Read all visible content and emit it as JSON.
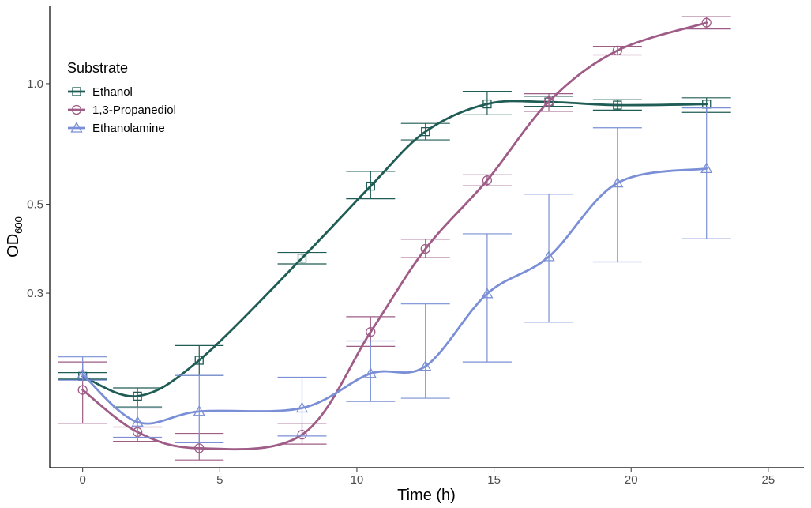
{
  "chart_data": {
    "type": "line",
    "title": "",
    "xlabel": "Time (h)",
    "ylabel_main": "OD",
    "ylabel_sub": "600",
    "x_scale": "linear",
    "y_scale": "log",
    "xlim": [
      -1.2,
      26.3
    ],
    "ylim": [
      0.11,
      1.56
    ],
    "x_ticks": [
      0,
      5,
      10,
      15,
      20,
      25
    ],
    "x_tick_labels": [
      "0",
      "5",
      "10",
      "15",
      "20",
      "25"
    ],
    "y_ticks": [
      0.3,
      0.5,
      1.0
    ],
    "y_tick_labels": [
      "0.3",
      "0.5",
      "1.0"
    ],
    "grid": false,
    "legend": {
      "title": "Substrate",
      "position": "top-left"
    },
    "series": [
      {
        "name": "Ethanol",
        "color": "#1f5c55",
        "marker": "square",
        "x": [
          0,
          2,
          4.25,
          8,
          10.5,
          12.5,
          14.75,
          17,
          19.5,
          22.75
        ],
        "y": [
          0.186,
          0.166,
          0.204,
          0.367,
          0.555,
          0.759,
          0.89,
          0.9,
          0.884,
          0.889
        ],
        "err_low": [
          0.183,
          0.156,
          0.187,
          0.355,
          0.516,
          0.724,
          0.836,
          0.878,
          0.859,
          0.848
        ],
        "err_high": [
          0.19,
          0.174,
          0.222,
          0.379,
          0.604,
          0.796,
          0.957,
          0.93,
          0.912,
          0.922
        ]
      },
      {
        "name": "1,3-Propanediol",
        "color": "#9e5c87",
        "marker": "circle",
        "x": [
          0,
          2,
          4.25,
          8,
          10.5,
          12.5,
          14.75,
          17,
          19.5,
          22.75
        ],
        "y": [
          0.172,
          0.135,
          0.123,
          0.133,
          0.24,
          0.387,
          0.574,
          0.902,
          1.21,
          1.42
        ],
        "err_low": [
          0.142,
          0.128,
          0.115,
          0.126,
          0.221,
          0.368,
          0.556,
          0.853,
          1.18,
          1.37
        ],
        "err_high": [
          0.202,
          0.139,
          0.134,
          0.142,
          0.262,
          0.409,
          0.592,
          0.944,
          1.24,
          1.47
        ]
      },
      {
        "name": "Ethanolamine",
        "color": "#7a8fd6",
        "marker": "triangle",
        "x": [
          0,
          2,
          4.25,
          8,
          10.5,
          12.5,
          14.75,
          17,
          19.5,
          22.75
        ],
        "y": [
          0.188,
          0.143,
          0.152,
          0.155,
          0.189,
          0.197,
          0.299,
          0.37,
          0.565,
          0.614
        ],
        "err_low": [
          0.182,
          0.131,
          0.127,
          0.132,
          0.161,
          0.164,
          0.202,
          0.254,
          0.359,
          0.41
        ],
        "err_high": [
          0.208,
          0.155,
          0.187,
          0.185,
          0.228,
          0.282,
          0.422,
          0.53,
          0.776,
          0.87
        ]
      }
    ]
  }
}
